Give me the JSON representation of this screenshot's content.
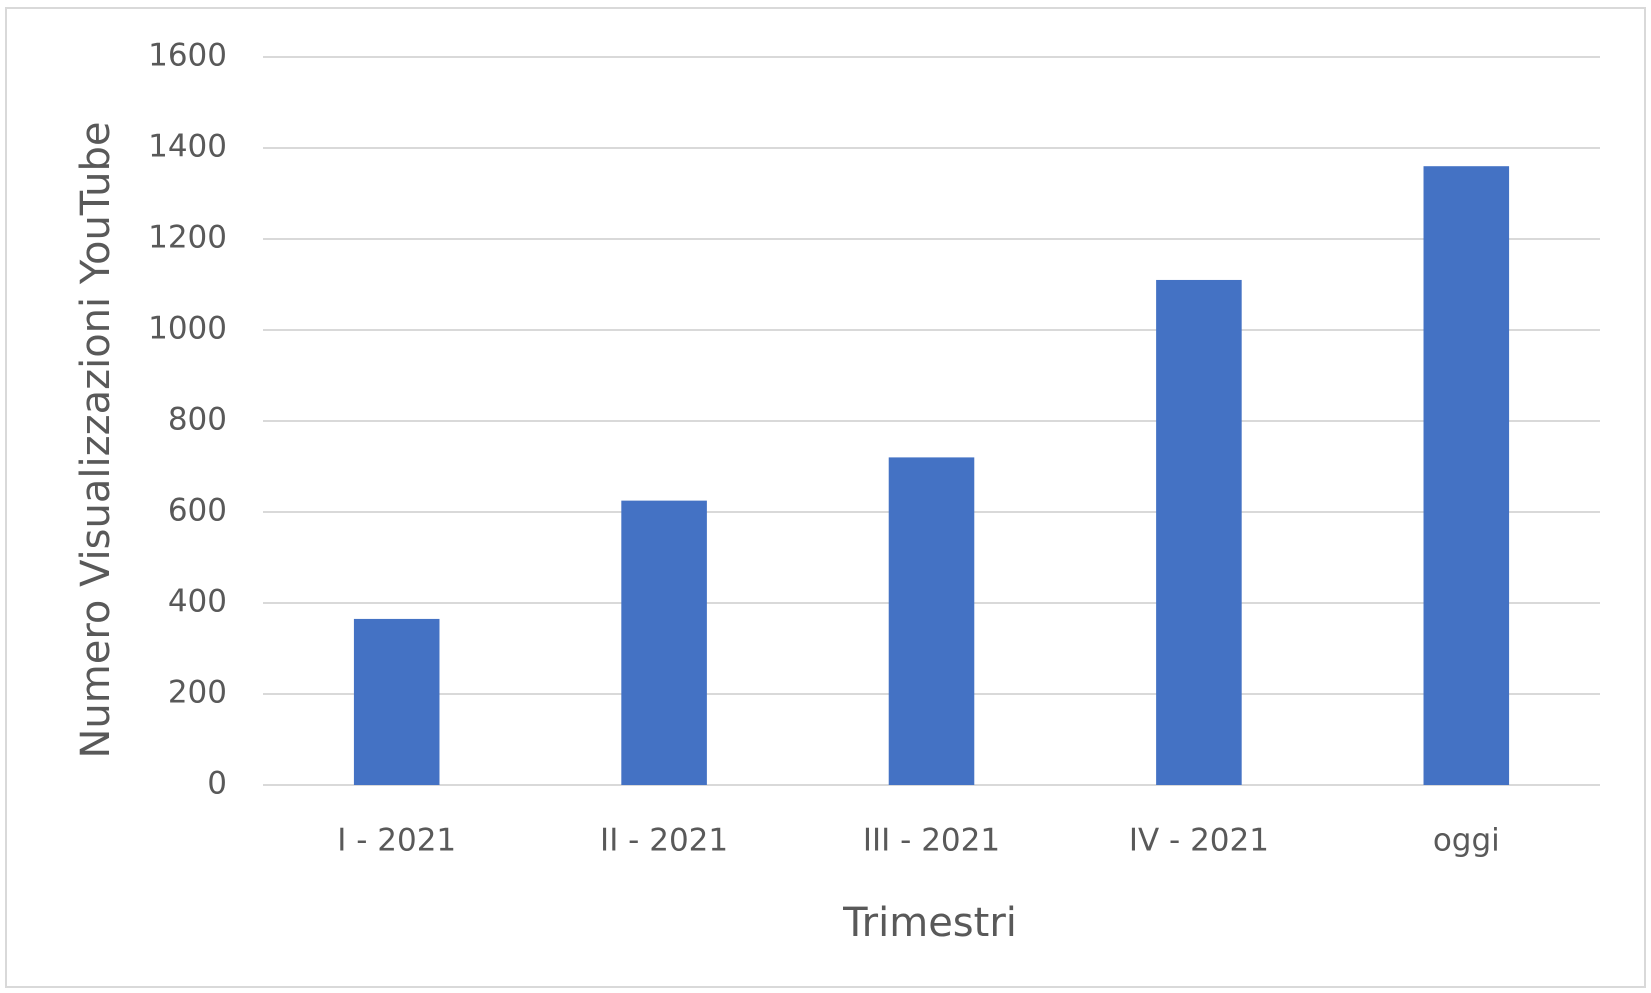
{
  "chart_data": {
    "type": "bar",
    "categories": [
      "I - 2021",
      "II - 2021",
      "III - 2021",
      "IV - 2021",
      "oggi"
    ],
    "values": [
      365,
      625,
      720,
      1110,
      1360
    ],
    "color": "#4472c4",
    "x_label": "Trimestri",
    "y_label": "Numero Visualizzazioni YouTube",
    "ylim": [
      0,
      1600
    ],
    "yticks": [
      0,
      200,
      400,
      600,
      800,
      1000,
      1200,
      1400,
      1600
    ],
    "grid": true
  }
}
